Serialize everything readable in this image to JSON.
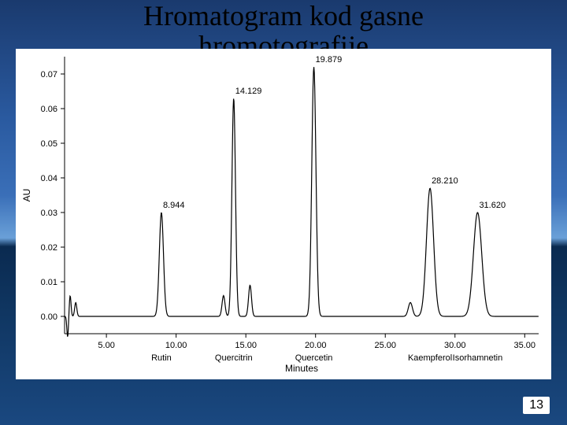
{
  "slide": {
    "title_line1": "Hromatogram kod gasne",
    "title_line2": "hromotografije",
    "page_number": "13"
  },
  "chart": {
    "type": "line",
    "background_color": "#ffffff",
    "trace_color": "#000000",
    "line_width": 1.2,
    "x": {
      "label": "Minutes",
      "min": 2,
      "max": 36,
      "ticks": [
        5.0,
        10.0,
        15.0,
        20.0,
        25.0,
        30.0,
        35.0
      ],
      "tick_labels": [
        "5.00",
        "10.00",
        "15.00",
        "20.00",
        "25.00",
        "30.00",
        "35.00"
      ],
      "label_fontsize": 12,
      "tick_fontsize": 11
    },
    "y": {
      "label": "AU",
      "min": -0.005,
      "max": 0.075,
      "ticks": [
        0.0,
        0.01,
        0.02,
        0.03,
        0.04,
        0.05,
        0.06,
        0.07
      ],
      "tick_labels": [
        "0.00",
        "0.01",
        "0.02",
        "0.03",
        "0.04",
        "0.05",
        "0.06",
        "0.07"
      ],
      "label_fontsize": 12,
      "tick_fontsize": 11
    },
    "baseline": 0.0,
    "peaks": [
      {
        "rt": 2.4,
        "height": 0.006,
        "width": 0.15,
        "label": null,
        "compound": null,
        "neg_dip": -0.006
      },
      {
        "rt": 2.8,
        "height": 0.004,
        "width": 0.18,
        "label": null,
        "compound": null
      },
      {
        "rt": 8.944,
        "height": 0.03,
        "width": 0.35,
        "label": "8.944",
        "compound": "Rutin"
      },
      {
        "rt": 13.4,
        "height": 0.006,
        "width": 0.25,
        "label": null,
        "compound": null
      },
      {
        "rt": 14.129,
        "height": 0.063,
        "width": 0.3,
        "label": "14.129",
        "compound": "Quercitrin"
      },
      {
        "rt": 15.3,
        "height": 0.009,
        "width": 0.25,
        "label": null,
        "compound": null
      },
      {
        "rt": 19.879,
        "height": 0.072,
        "width": 0.35,
        "label": "19.879",
        "compound": "Quercetin"
      },
      {
        "rt": 26.8,
        "height": 0.004,
        "width": 0.35,
        "label": null,
        "compound": null
      },
      {
        "rt": 28.21,
        "height": 0.037,
        "width": 0.6,
        "label": "28.210",
        "compound": "Kaempferol"
      },
      {
        "rt": 31.62,
        "height": 0.03,
        "width": 0.7,
        "label": "31.620",
        "compound": "Isorhamnetin"
      }
    ]
  }
}
